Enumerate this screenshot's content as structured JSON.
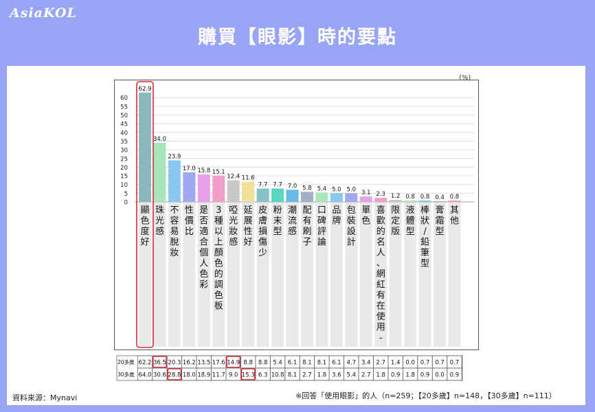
{
  "brand": "AsiaKOL",
  "title": "購買【眼影】時的要點",
  "unit_label": "(%)",
  "source": "資料來源：Mynavi",
  "note": "※回答「使用眼影」的人（n=259；【20多歲】n=148，【30多歲】n=111）",
  "chart_data": {
    "type": "bar",
    "ylim": [
      0,
      65
    ],
    "yticks": [
      0,
      5,
      10,
      15,
      20,
      25,
      30,
      35,
      40,
      45,
      50,
      55,
      60
    ],
    "categories": [
      "顯色度好",
      "珠光感",
      "不容易脫妝",
      "性價比",
      "是否適合個人色彩",
      "3種以上顏色的調色板",
      "啞光妝感",
      "延展性好",
      "皮膚損傷少",
      "粉末型",
      "潮流感",
      "配有刷子",
      "口碑評論",
      "品牌",
      "包裝設計",
      "單色",
      "喜歡的名人、網紅有在使用-",
      "限定版",
      "液體型",
      "棒狀/鉛筆型",
      "膏霜型",
      "其他"
    ],
    "values": [
      62.9,
      34.0,
      23.9,
      17.0,
      15.8,
      15.1,
      12.4,
      11.6,
      7.7,
      7.7,
      7.0,
      5.8,
      5.4,
      5.0,
      5.0,
      3.1,
      2.3,
      1.2,
      0.8,
      0.8,
      0.4,
      0.8
    ],
    "value_labels": [
      "62.9",
      "34.0",
      "23.9",
      "17.0",
      "15.8",
      "15.1",
      "12.4",
      "11.6",
      "7.7",
      "7.7",
      "7.0",
      "5.8",
      "5.4",
      "5.0",
      "5.0",
      "3.1",
      "2.3",
      "1.2",
      "0.8",
      "0.8",
      "0.4",
      "0.8"
    ],
    "colors": [
      "#8ab8bc",
      "#a8e8b8",
      "#88c8f0",
      "#a0a8f0",
      "#e8a0e8",
      "#f0a0c8",
      "#c8c8c8",
      "#f0e098",
      "#88c0c8",
      "#58d8c0",
      "#68b8e8",
      "#a0b0c8",
      "#a8e8b8",
      "#88c8f0",
      "#a0a8f0",
      "#e8a0e8",
      "#f0a0c8",
      "#c8c8c8",
      "#a8e8b8",
      "#88c8f0",
      "#a0b8d8",
      "#f0a0b0"
    ],
    "highlight_bar": 0,
    "table": {
      "rows": [
        {
          "label": "20多歲",
          "values": [
            "62.2",
            "36.5",
            "20.3",
            "16.2",
            "13.5",
            "17.6",
            "14.9",
            "8.8",
            "8.8",
            "5.4",
            "6.1",
            "8.1",
            "8.1",
            "6.1",
            "4.7",
            "3.4",
            "2.7",
            "1.4",
            "0.0",
            "0.7",
            "0.7",
            "0.7"
          ],
          "highlight": [
            1,
            6
          ]
        },
        {
          "label": "30多歲",
          "values": [
            "64.0",
            "30.6",
            "28.8",
            "18.0",
            "18.9",
            "11.7",
            "9.0",
            "15.3",
            "6.3",
            "10.8",
            "8.1",
            "2.7",
            "1.8",
            "3.6",
            "5.4",
            "2.7",
            "1.8",
            "0.9",
            "1.8",
            "0.9",
            "0.0",
            "0.9"
          ],
          "highlight": [
            2,
            7
          ]
        }
      ]
    }
  }
}
